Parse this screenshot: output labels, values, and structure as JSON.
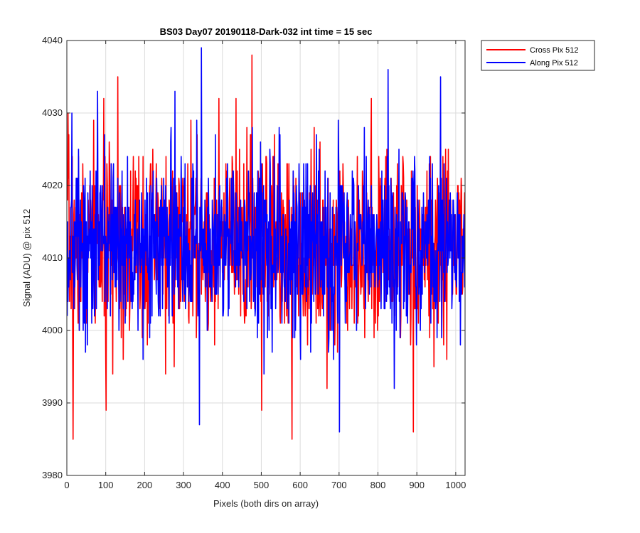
{
  "chart_data": {
    "type": "line",
    "title": "BS03 Day07 20190118-Dark-032 int time = 15 sec",
    "xlabel": "Pixels (both dirs on array)",
    "ylabel": "Signal (ADU) @ pix 512",
    "xlim": [
      0,
      1024
    ],
    "ylim": [
      3980,
      4040
    ],
    "xticks": [
      0,
      100,
      200,
      300,
      400,
      500,
      600,
      700,
      800,
      900,
      1000
    ],
    "yticks": [
      3980,
      3990,
      4000,
      4010,
      4020,
      4030,
      4040
    ],
    "grid": true,
    "legend_position": "outside top-right",
    "colors": {
      "cross": "#ff0000",
      "along": "#0000ff",
      "axis": "#262626",
      "grid": "#dbdbdb"
    },
    "series": [
      {
        "name": "Cross Pix 512",
        "color": "#ff0000",
        "sampling": "1024 noisy samples per pixel, mean ≈ 4012 ADU, range ≈ 3985–4038 ADU",
        "mean": 4012,
        "std": 6.5,
        "seed": 7,
        "extremes": [
          {
            "x": 15,
            "y": 3985
          },
          {
            "x": 100,
            "y": 3989
          },
          {
            "x": 130,
            "y": 4035
          },
          {
            "x": 475,
            "y": 4038
          },
          {
            "x": 500,
            "y": 3989
          },
          {
            "x": 578,
            "y": 3985
          },
          {
            "x": 890,
            "y": 3986
          },
          {
            "x": 2,
            "y": 4030
          }
        ]
      },
      {
        "name": "Along Pix 512",
        "color": "#0000ff",
        "sampling": "1024 noisy samples per pixel, mean ≈ 4012 ADU, range ≈ 3986–4039 ADU",
        "mean": 4012,
        "std": 6.2,
        "seed": 13,
        "extremes": [
          {
            "x": 345,
            "y": 4039
          },
          {
            "x": 340,
            "y": 3987
          },
          {
            "x": 700,
            "y": 3986
          },
          {
            "x": 78,
            "y": 4033
          },
          {
            "x": 960,
            "y": 4035
          },
          {
            "x": 825,
            "y": 4036
          },
          {
            "x": 12,
            "y": 4030
          }
        ]
      }
    ]
  }
}
